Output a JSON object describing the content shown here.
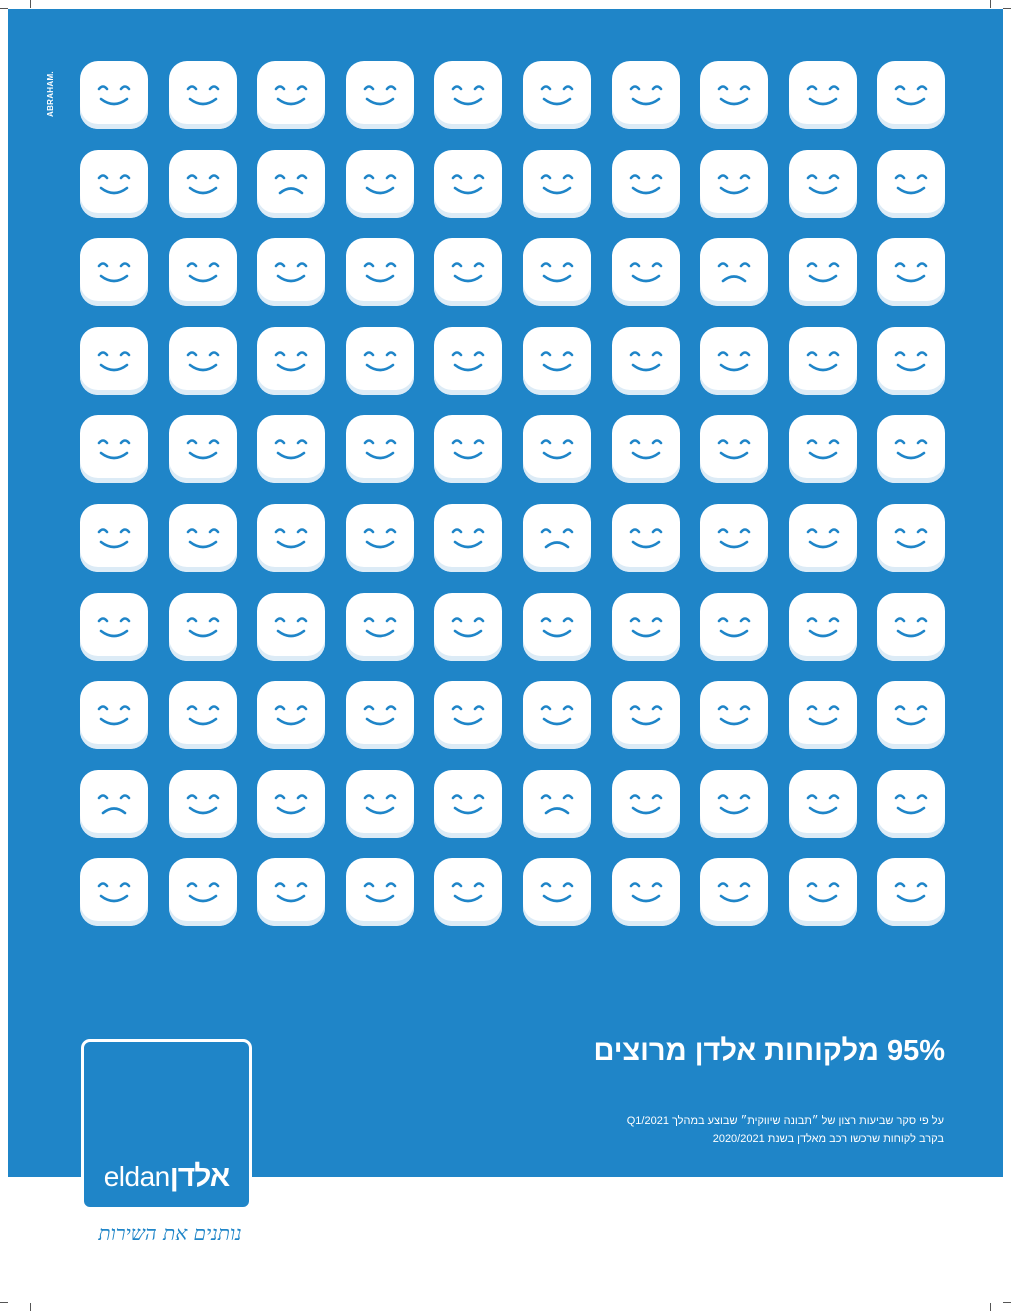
{
  "poster": {
    "credit": "ABRAHAM.",
    "headline": "95% מלקוחות אלדן מרוצים",
    "footnote_line1": "על פי סקר שביעות רצון של ״תבונה שיווקית״ שבוצע במהלך Q1/2021",
    "footnote_line2": "בקרב לקוחות שרכשו רכב מאלדן בשנת 2020/2021"
  },
  "logo": {
    "latin": "eldan",
    "hebrew": "אלדן",
    "slogan": "נותנים את השירות"
  },
  "faces": {
    "rows": 10,
    "cols": 10,
    "happy_count": 95,
    "sad_count": 5,
    "sad_cells": [
      [
        1,
        2
      ],
      [
        2,
        7
      ],
      [
        5,
        5
      ],
      [
        8,
        0
      ],
      [
        8,
        5
      ]
    ]
  },
  "colors": {
    "background": "#1f85c8",
    "face": "#ffffff",
    "face_feature": "#1f85c8"
  }
}
